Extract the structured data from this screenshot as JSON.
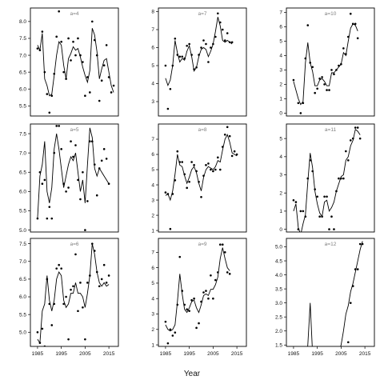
{
  "chart_data": [
    {
      "type": "scatter",
      "title": "a=4",
      "x": [
        1985,
        1986,
        1987,
        1988,
        1989,
        1990,
        1991,
        1992,
        1993,
        1994,
        1995,
        1996,
        1997,
        1998,
        1999,
        2000,
        2001,
        2002,
        2003,
        2004,
        2005,
        2006,
        2007,
        2008,
        2009,
        2010,
        2011,
        2012,
        2013,
        2014,
        2015,
        2016,
        2017
      ],
      "y": [
        7.2,
        7.15,
        7.7,
        6.5,
        5.85,
        5.3,
        5.8,
        6.45,
        7.55,
        8.3,
        7.4,
        6.5,
        6.3,
        7.5,
        6.85,
        7.4,
        7.0,
        7.5,
        7.0,
        6.8,
        5.8,
        6.35,
        5.9,
        8.0,
        7.45,
        7.0,
        5.65,
        6.25,
        6.7,
        7.3,
        6.35,
        5.9,
        6.1
      ],
      "smooth": [
        7.3,
        7.15,
        7.65,
        6.3,
        6.1,
        5.8,
        5.85,
        6.4,
        7.0,
        7.4,
        7.3,
        6.7,
        6.3,
        6.9,
        7.05,
        7.25,
        7.15,
        7.2,
        6.95,
        6.65,
        6.4,
        6.2,
        6.55,
        7.8,
        7.6,
        7.1,
        6.3,
        6.6,
        6.85,
        6.9,
        6.5,
        6.1,
        5.9
      ],
      "xlim": [
        1982,
        2019
      ],
      "ylim": [
        5.2,
        8.4
      ],
      "yticks": [
        "5.5",
        "6.0",
        "6.5",
        "7.0",
        "7.5",
        "8.0"
      ],
      "yticks_values": [
        5.5,
        6.0,
        6.5,
        7.0,
        7.5,
        8.0
      ],
      "xticks": []
    },
    {
      "type": "scatter",
      "title": "a=7",
      "x": [
        1985,
        1986,
        1987,
        1988,
        1989,
        1990,
        1991,
        1992,
        1993,
        1994,
        1995,
        1996,
        1997,
        1998,
        1999,
        2000,
        2001,
        2002,
        2003,
        2004,
        2005,
        2006,
        2007,
        2008,
        2009,
        2010,
        2011,
        2012,
        2013,
        2014,
        2015,
        2016
      ],
      "y": [
        5.0,
        2.6,
        3.7,
        5.0,
        6.5,
        5.6,
        5.5,
        5.5,
        5.4,
        6.1,
        6.2,
        5.6,
        4.8,
        4.9,
        5.6,
        6.0,
        6.4,
        6.2,
        5.2,
        6.0,
        6.2,
        6.6,
        7.9,
        7.4,
        7.0,
        6.4,
        6.8,
        6.3,
        6.3,
        null,
        null,
        null
      ],
      "smooth": [
        4.3,
        3.9,
        4.2,
        5.0,
        6.4,
        5.7,
        5.2,
        5.4,
        5.3,
        5.8,
        6.1,
        5.5,
        4.7,
        4.9,
        5.5,
        5.9,
        6.0,
        5.9,
        5.5,
        5.8,
        6.2,
        6.9,
        7.7,
        7.2,
        6.4,
        6.3,
        6.4,
        6.3,
        6.2,
        null,
        null,
        null
      ],
      "xlim": [
        1982,
        2019
      ],
      "ylim": [
        2.2,
        8.2
      ],
      "yticks": [
        "3",
        "4",
        "5",
        "6",
        "7",
        "8"
      ],
      "yticks_values": [
        3,
        4,
        5,
        6,
        7,
        8
      ],
      "xticks": []
    },
    {
      "type": "scatter",
      "title": "a=10",
      "x": [
        1985,
        1987,
        1988,
        1989,
        1990,
        1991,
        1992,
        1993,
        1994,
        1995,
        1996,
        1997,
        1998,
        1999,
        2000,
        2001,
        2002,
        2003,
        2004,
        2005,
        2006,
        2007,
        2008,
        2009,
        2010,
        2011,
        2012,
        2013,
        2014,
        2015,
        2016,
        2017
      ],
      "y": [
        2.3,
        0.7,
        0.0,
        0.7,
        3.8,
        6.1,
        3.5,
        3.2,
        1.4,
        1.7,
        2.4,
        2.5,
        2.0,
        1.6,
        1.6,
        3.0,
        2.7,
        3.0,
        3.3,
        3.4,
        4.5,
        4.1,
        5.3,
        6.9,
        6.2,
        6.2,
        5.2,
        null,
        null,
        null,
        null,
        null
      ],
      "smooth": [
        2.2,
        1.0,
        0.6,
        0.8,
        3.5,
        4.9,
        3.5,
        2.9,
        1.9,
        1.9,
        2.3,
        2.4,
        2.2,
        1.9,
        1.9,
        2.8,
        2.8,
        3.0,
        3.2,
        3.4,
        4.2,
        4.0,
        5.0,
        5.9,
        6.2,
        6.1,
        5.7,
        null,
        null,
        null,
        null,
        null
      ],
      "xlim": [
        1982,
        2019
      ],
      "ylim": [
        -0.2,
        7.3
      ],
      "yticks": [
        "0",
        "1",
        "2",
        "3",
        "4",
        "5",
        "6",
        "7"
      ],
      "yticks_values": [
        0,
        1,
        2,
        3,
        4,
        5,
        6,
        7
      ],
      "xticks": []
    },
    {
      "type": "scatter",
      "title": "a=5",
      "x": [
        1985,
        1986,
        1987,
        1988,
        1989,
        1990,
        1991,
        1992,
        1993,
        1994,
        1995,
        1996,
        1997,
        1998,
        1999,
        2000,
        2001,
        2002,
        2003,
        2004,
        2005,
        2006,
        2007,
        2008,
        2009,
        2010,
        2011,
        2012,
        2013,
        2014,
        2015,
        2016
      ],
      "y": [
        5.3,
        6.5,
        6.2,
        6.3,
        5.3,
        5.6,
        5.3,
        7.0,
        7.7,
        7.7,
        7.1,
        6.2,
        6.0,
        6.1,
        7.3,
        6.9,
        7.2,
        6.3,
        5.8,
        6.5,
        5.0,
        5.75,
        7.3,
        7.3,
        6.7,
        5.9,
        6.6,
        6.8,
        7.1,
        6.85,
        6.2,
        null
      ],
      "smooth": [
        5.3,
        6.4,
        6.7,
        7.3,
        6.0,
        5.7,
        6.1,
        7.1,
        7.5,
        7.1,
        6.6,
        6.1,
        6.4,
        6.7,
        6.9,
        6.8,
        7.0,
        6.5,
        6.0,
        6.3,
        5.7,
        6.7,
        7.65,
        7.4,
        6.6,
        6.4,
        6.6,
        6.5,
        6.4,
        6.3,
        6.2,
        null
      ],
      "xlim": [
        1982,
        2019
      ],
      "ylim": [
        4.95,
        7.75
      ],
      "yticks": [
        "5.0",
        "5.5",
        "6.0",
        "6.5",
        "7.0",
        "7.5"
      ],
      "yticks_values": [
        5.0,
        5.5,
        6.0,
        6.5,
        7.0,
        7.5
      ],
      "xticks": []
    },
    {
      "type": "scatter",
      "title": "a=8",
      "x": [
        1985,
        1986,
        1987,
        1988,
        1989,
        1990,
        1991,
        1992,
        1993,
        1994,
        1995,
        1996,
        1997,
        1998,
        1999,
        2000,
        2001,
        2002,
        2003,
        2004,
        2005,
        2006,
        2007,
        2008,
        2009,
        2010,
        2011,
        2012,
        2013,
        2014,
        2015,
        2016
      ],
      "y": [
        3.5,
        3.4,
        1.1,
        3.4,
        4.3,
        6.2,
        5.5,
        5.5,
        4.7,
        3.8,
        4.2,
        5.5,
        5.3,
        4.9,
        4.2,
        3.2,
        4.6,
        5.3,
        5.4,
        5.0,
        4.9,
        5.0,
        5.8,
        5.0,
        6.5,
        7.3,
        7.8,
        7.2,
        5.9,
        6.2,
        6.0,
        null
      ],
      "smooth": [
        3.3,
        3.4,
        3.0,
        3.6,
        4.7,
        6.0,
        5.3,
        5.2,
        4.6,
        4.1,
        4.5,
        5.0,
        5.2,
        4.8,
        4.1,
        3.6,
        4.5,
        5.0,
        5.2,
        5.1,
        5.0,
        5.2,
        5.6,
        5.5,
        6.3,
        7.0,
        7.3,
        6.8,
        6.1,
        6.0,
        5.9,
        null
      ],
      "xlim": [
        1982,
        2019
      ],
      "ylim": [
        0.9,
        8.0
      ],
      "yticks": [
        "1",
        "2",
        "3",
        "4",
        "5",
        "6",
        "7"
      ],
      "yticks_values": [
        1,
        2,
        3,
        4,
        5,
        6,
        7
      ],
      "xticks": []
    },
    {
      "type": "scatter",
      "title": "a=11",
      "x": [
        1985,
        1986,
        1987,
        1988,
        1989,
        1990,
        1991,
        1992,
        1993,
        1994,
        1995,
        1996,
        1997,
        1998,
        1999,
        2000,
        2001,
        2002,
        2003,
        2004,
        2005,
        2006,
        2007,
        2008,
        2009,
        2010,
        2011,
        2012,
        2013,
        2014,
        2015,
        2016
      ],
      "y": [
        1.6,
        1.5,
        0.0,
        1.0,
        1.0,
        0.7,
        2.8,
        3.8,
        3.2,
        2.2,
        1.8,
        0.7,
        0.7,
        1.8,
        1.8,
        0.0,
        0.7,
        0.0,
        2.1,
        2.8,
        2.8,
        2.8,
        4.3,
        3.8,
        4.9,
        5.0,
        5.6,
        5.6,
        5.0,
        null,
        null,
        null
      ],
      "smooth": [
        1.0,
        1.4,
        0.1,
        -0.3,
        0.3,
        0.8,
        2.6,
        4.2,
        3.4,
        2.1,
        1.4,
        0.9,
        0.7,
        1.5,
        1.6,
        1.0,
        1.2,
        1.5,
        2.1,
        2.5,
        2.9,
        3.0,
        3.8,
        4.0,
        4.6,
        4.9,
        5.5,
        5.4,
        5.2,
        null,
        null,
        null
      ],
      "xlim": [
        1982,
        2019
      ],
      "ylim": [
        -0.15,
        5.8
      ],
      "yticks": [
        "0",
        "1",
        "2",
        "3",
        "4",
        "5"
      ],
      "yticks_values": [
        0,
        1,
        2,
        3,
        4,
        5
      ],
      "xticks": []
    },
    {
      "type": "scatter",
      "title": "a=6",
      "x": [
        1985,
        1986,
        1987,
        1988,
        1989,
        1990,
        1991,
        1992,
        1993,
        1994,
        1995,
        1996,
        1997,
        1998,
        1999,
        2000,
        2001,
        2002,
        2003,
        2004,
        2005,
        2006,
        2007,
        2008,
        2009,
        2010,
        2011,
        2012,
        2013,
        2014,
        2015,
        2016
      ],
      "y": [
        5.0,
        4.7,
        5.1,
        4.6,
        6.5,
        5.8,
        5.2,
        5.8,
        6.8,
        6.9,
        6.8,
        5.8,
        6.0,
        4.8,
        6.2,
        6.3,
        7.2,
        5.6,
        6.4,
        5.7,
        4.8,
        6.4,
        6.6,
        7.5,
        7.3,
        6.7,
        6.3,
        6.5,
        6.9,
        6.4,
        6.6,
        null
      ],
      "smooth": [
        4.8,
        4.7,
        5.6,
        5.8,
        6.6,
        5.9,
        5.6,
        5.9,
        6.5,
        6.7,
        6.6,
        5.9,
        5.7,
        5.8,
        6.1,
        6.1,
        6.4,
        6.1,
        6.1,
        6.0,
        5.7,
        6.1,
        6.6,
        7.5,
        7.2,
        6.7,
        6.4,
        6.3,
        6.4,
        6.3,
        6.35,
        null
      ],
      "xlim": [
        1982,
        2019
      ],
      "ylim": [
        4.6,
        7.65
      ],
      "yticks": [
        "5.0",
        "5.5",
        "6.0",
        "6.5",
        "7.0",
        "7.5"
      ],
      "yticks_values": [
        5.0,
        5.5,
        6.0,
        6.5,
        7.0,
        7.5
      ],
      "xticks": [
        "1985",
        "1995",
        "2005",
        "2015"
      ],
      "xticks_values": [
        1985,
        1995,
        2005,
        2015
      ]
    },
    {
      "type": "scatter",
      "title": "a=9",
      "x": [
        1985,
        1986,
        1987,
        1988,
        1989,
        1990,
        1991,
        1992,
        1993,
        1994,
        1995,
        1996,
        1997,
        1998,
        1999,
        2000,
        2001,
        2002,
        2003,
        2004,
        2005,
        2006,
        2007,
        2008,
        2009,
        2010,
        2011,
        2012,
        2013,
        2014,
        2015,
        2016
      ],
      "y": [
        2.5,
        1.1,
        2.0,
        1.6,
        1.8,
        3.6,
        6.7,
        4.5,
        3.6,
        3.3,
        3.2,
        3.9,
        4.0,
        2.1,
        2.4,
        3.8,
        4.4,
        4.5,
        4.0,
        5.5,
        4.0,
        5.2,
        5.7,
        7.5,
        7.5,
        7.0,
        5.7,
        5.6,
        null,
        null,
        null,
        null
      ],
      "smooth": [
        2.3,
        2.0,
        1.9,
        2.0,
        2.3,
        3.8,
        5.6,
        4.3,
        3.3,
        3.1,
        3.4,
        3.8,
        3.9,
        3.4,
        3.1,
        3.6,
        4.2,
        4.3,
        4.2,
        4.6,
        4.6,
        4.9,
        5.4,
        6.6,
        7.3,
        6.6,
        6.0,
        5.8,
        null,
        null,
        null,
        null
      ],
      "xlim": [
        1982,
        2019
      ],
      "ylim": [
        0.9,
        7.9
      ],
      "yticks": [
        "1",
        "2",
        "3",
        "4",
        "5",
        "6",
        "7"
      ],
      "yticks_values": [
        1,
        2,
        3,
        4,
        5,
        6,
        7
      ],
      "xticks": [
        "1985",
        "1995",
        "2005",
        "2015"
      ],
      "xticks_values": [
        1985,
        1995,
        2005,
        2015
      ]
    },
    {
      "type": "scatter",
      "title": "a=12",
      "x": [
        1985,
        1986,
        1987,
        1988,
        1989,
        1990,
        1991,
        1992,
        1993,
        1994,
        1995,
        1996,
        1997,
        1998,
        1999,
        2000,
        2001,
        2002,
        2003,
        2004,
        2005,
        2006,
        2007,
        2008,
        2009,
        2010,
        2011,
        2012,
        2013,
        2014,
        2015,
        2016
      ],
      "y": [
        null,
        null,
        null,
        null,
        null,
        null,
        null,
        null,
        null,
        null,
        null,
        null,
        null,
        null,
        null,
        null,
        null,
        null,
        null,
        null,
        null,
        null,
        null,
        1.6,
        3.0,
        3.6,
        4.2,
        4.2,
        5.1,
        5.1,
        null,
        null
      ],
      "smooth": [
        1.4,
        1.2,
        0.9,
        0.6,
        0.6,
        0.7,
        1.5,
        3.0,
        1.2,
        0.3,
        0.2,
        0.3,
        0.4,
        0.5,
        0.6,
        0.8,
        0.9,
        1.0,
        1.1,
        1.3,
        1.5,
        2.0,
        2.6,
        2.9,
        3.4,
        3.7,
        4.1,
        4.5,
        4.9,
        5.2,
        null,
        null
      ],
      "xlim": [
        1982,
        2019
      ],
      "ylim": [
        1.45,
        5.3
      ],
      "yticks": [
        "1.5",
        "2.0",
        "2.5",
        "3.0",
        "3.5",
        "4.0",
        "4.5",
        "5.0"
      ],
      "yticks_values": [
        1.5,
        2.0,
        2.5,
        3.0,
        3.5,
        4.0,
        4.5,
        5.0
      ],
      "xticks": [
        "1985",
        "1995",
        "2005",
        "2015"
      ],
      "xticks_values": [
        1985,
        1995,
        2005,
        2015
      ]
    }
  ],
  "figure": {
    "xlabel": "Year"
  }
}
